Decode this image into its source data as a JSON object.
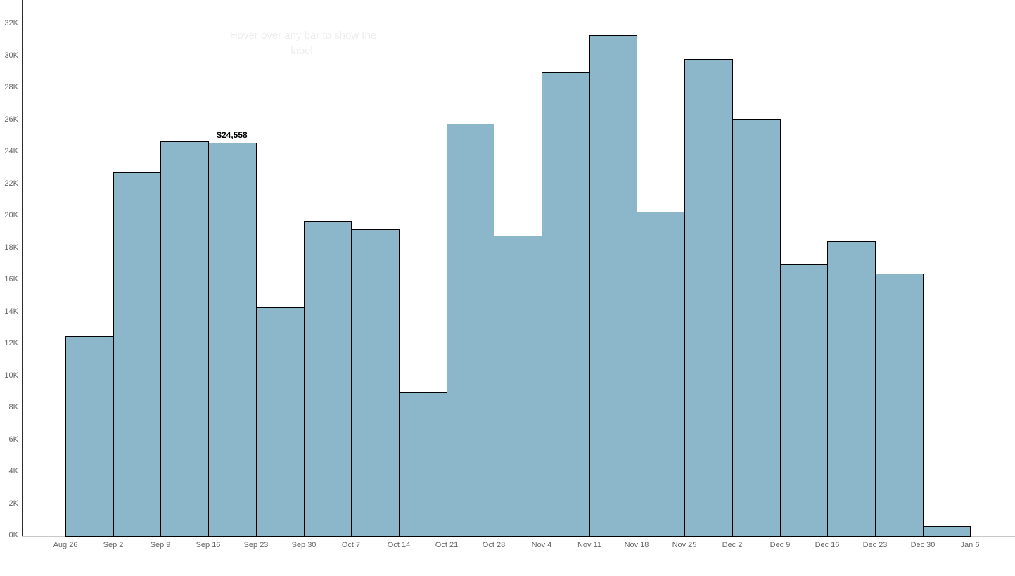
{
  "hint": {
    "text": "Hover over any bar to show the label."
  },
  "annotation": {
    "bar_label": "$24,558",
    "bar_index": 3
  },
  "colors": {
    "background": "#ffffff",
    "bar_fill": "#8CB6CA",
    "bar_border": "#000000",
    "axis_text": "#666666",
    "y_axis_line": "#2e2e2e",
    "x_axis_line": "#c9c9c9",
    "hint_text": "#ededed",
    "value_label_text": "#000000"
  },
  "chart_data": {
    "type": "bar",
    "bar_style": "histogram-adjacent-weekly",
    "title": "",
    "xlabel": "",
    "ylabel": "",
    "grid": false,
    "legend": false,
    "x_tick_labels": [
      "Aug 26",
      "Sep 2",
      "Sep 9",
      "Sep 16",
      "Sep 23",
      "Sep 30",
      "Oct 7",
      "Oct 14",
      "Oct 21",
      "Oct 28",
      "Nov 4",
      "Nov 11",
      "Nov 18",
      "Nov 25",
      "Dec 2",
      "Dec 9",
      "Dec 16",
      "Dec 23",
      "Dec 30",
      "Jan 6"
    ],
    "categories": [
      "Aug 26",
      "Sep 2",
      "Sep 9",
      "Sep 16",
      "Sep 23",
      "Sep 30",
      "Oct 7",
      "Oct 14",
      "Oct 21",
      "Oct 28",
      "Nov 4",
      "Nov 11",
      "Nov 18",
      "Nov 25",
      "Dec 2",
      "Dec 9",
      "Dec 16",
      "Dec 23",
      "Dec 30"
    ],
    "values": [
      12480,
      22730,
      24650,
      24558,
      14290,
      19690,
      19160,
      8970,
      25760,
      18770,
      28970,
      31300,
      20260,
      29800,
      26070,
      16970,
      18420,
      16400,
      600
    ],
    "y_tick_labels": [
      "0K",
      "2K",
      "4K",
      "6K",
      "8K",
      "10K",
      "12K",
      "14K",
      "16K",
      "18K",
      "20K",
      "22K",
      "24K",
      "26K",
      "28K",
      "30K",
      "32K"
    ],
    "y_tick_step": 2000,
    "ylim": [
      0,
      33500
    ],
    "labeled_bar": {
      "category": "Sep 16",
      "label": "$24,558",
      "value": 24558
    }
  }
}
